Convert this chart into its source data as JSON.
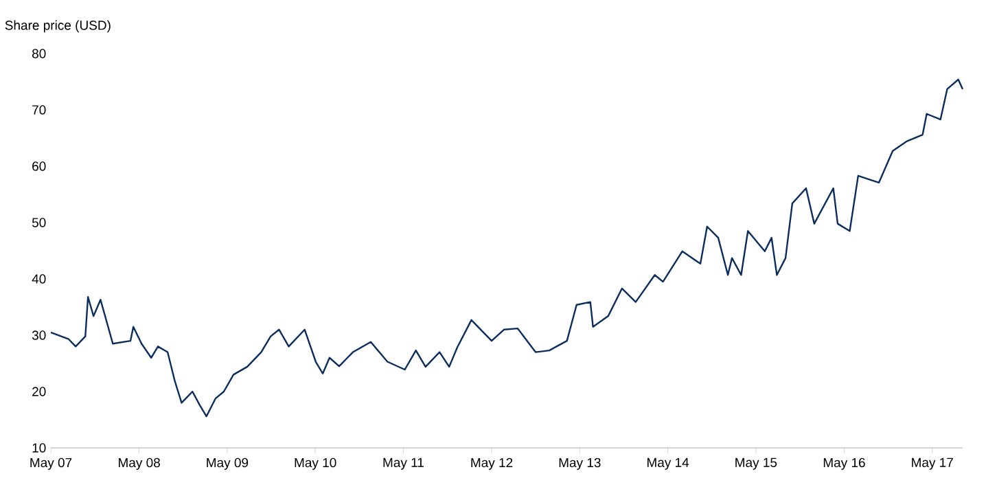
{
  "chart_data": {
    "type": "line",
    "ylabel": "Share price (USD)",
    "color": "#0b2d5e",
    "x": [
      "2007-05-01",
      "2007-07-14",
      "2007-08-12",
      "2007-09-21",
      "2007-10-02",
      "2007-10-25",
      "2007-11-23",
      "2008-01-13",
      "2008-03-26",
      "2008-04-07",
      "2008-05-11",
      "2008-06-20",
      "2008-07-18",
      "2008-08-27",
      "2008-09-25",
      "2008-10-24",
      "2008-12-08",
      "2009-01-07",
      "2009-02-04",
      "2009-03-14",
      "2009-04-17",
      "2009-05-27",
      "2009-07-23",
      "2009-09-19",
      "2009-10-28",
      "2009-12-02",
      "2010-01-11",
      "2010-03-18",
      "2010-05-03",
      "2010-06-01",
      "2010-06-29",
      "2010-08-08",
      "2010-10-04",
      "2010-12-17",
      "2011-02-24",
      "2011-05-07",
      "2011-06-22",
      "2011-08-01",
      "2011-09-28",
      "2011-11-07",
      "2011-12-10",
      "2012-02-07",
      "2012-05-01",
      "2012-06-21",
      "2012-08-17",
      "2012-10-30",
      "2012-12-26",
      "2013-03-09",
      "2013-04-18",
      "2013-06-14",
      "2013-06-25",
      "2013-08-27",
      "2013-10-23",
      "2013-12-19",
      "2014-03-08",
      "2014-04-11",
      "2014-06-30",
      "2014-09-13",
      "2014-10-11",
      "2014-11-26",
      "2015-01-05",
      "2015-01-22",
      "2015-03-01",
      "2015-03-29",
      "2015-06-07",
      "2015-07-05",
      "2015-07-27",
      "2015-09-01",
      "2015-09-29",
      "2015-11-25",
      "2015-12-29",
      "2016-03-17",
      "2016-04-04",
      "2016-05-24",
      "2016-06-28",
      "2016-09-22",
      "2016-11-18",
      "2017-01-14",
      "2017-03-22",
      "2017-04-08",
      "2017-06-04",
      "2017-07-02",
      "2017-08-17",
      "2017-09-04"
    ],
    "values": [
      30.5,
      29.3,
      28,
      29.8,
      36.8,
      33.4,
      36.3,
      28.5,
      29,
      31.5,
      28.5,
      26,
      28,
      27,
      22,
      18,
      20,
      17.6,
      15.6,
      18.8,
      20,
      23,
      24.4,
      27,
      29.8,
      31,
      28,
      31,
      25.3,
      23.2,
      26,
      24.5,
      27,
      28.8,
      25.3,
      23.9,
      27.3,
      24.4,
      27,
      24.4,
      27.8,
      32.7,
      29,
      31,
      31.2,
      27,
      27.3,
      29,
      35.4,
      35.9,
      31.5,
      33.4,
      38.3,
      35.9,
      40.7,
      39.5,
      44.9,
      42.7,
      49.3,
      47.3,
      40.7,
      43.7,
      40.7,
      48.5,
      44.9,
      47.3,
      40.7,
      43.7,
      53.4,
      56.1,
      49.8,
      56.1,
      49.8,
      48.5,
      58.3,
      57.1,
      62.7,
      64.4,
      65.6,
      69.3,
      68.3,
      73.7,
      75.4,
      73.7
    ],
    "xlim": [
      "2007-05-01",
      "2017-09-04"
    ],
    "ylim": [
      10,
      80
    ],
    "yticks": [
      10,
      20,
      30,
      40,
      50,
      60,
      70,
      80
    ],
    "xticks": [
      {
        "value": "2007-05-01",
        "label": "May 07"
      },
      {
        "value": "2008-05-01",
        "label": "May 08"
      },
      {
        "value": "2009-05-01",
        "label": "May 09"
      },
      {
        "value": "2010-05-01",
        "label": "May 10"
      },
      {
        "value": "2011-05-01",
        "label": "May 11"
      },
      {
        "value": "2012-05-01",
        "label": "May 12"
      },
      {
        "value": "2013-05-01",
        "label": "May 13"
      },
      {
        "value": "2014-05-01",
        "label": "May 14"
      },
      {
        "value": "2015-05-01",
        "label": "May 15"
      },
      {
        "value": "2016-05-01",
        "label": "May 16"
      },
      {
        "value": "2017-05-01",
        "label": "May 17"
      }
    ]
  }
}
